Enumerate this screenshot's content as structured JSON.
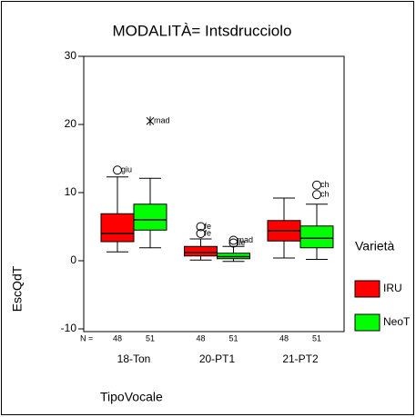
{
  "chart_data": {
    "type": "box",
    "title": "MODALITÀ= Intsdrucciolo",
    "x_label": "TipoVocale",
    "y_label": "EscQdT",
    "legend_title": "Varietà",
    "n_label": "N =",
    "categories": [
      "18-Ton",
      "20-PT1",
      "21-PT2"
    ],
    "ylim": [
      -10,
      30
    ],
    "yticks": [
      -10,
      0,
      10,
      20,
      30
    ],
    "series": [
      {
        "name": "IRU",
        "color": "#ff0000",
        "boxes": [
          {
            "min": 1.3,
            "q1": 2.8,
            "median": 4.0,
            "q3": 6.9,
            "max": 12.3,
            "n": 48,
            "outliers": [
              {
                "value": 13.3,
                "label": "giu",
                "marker": "circle"
              }
            ]
          },
          {
            "min": 0.1,
            "q1": 0.7,
            "median": 1.2,
            "q3": 2.1,
            "max": 3.2,
            "n": 48,
            "outliers": [
              {
                "value": 5.0,
                "label": "fe",
                "marker": "circle"
              },
              {
                "value": 4.0,
                "label": "fe",
                "marker": "circle"
              }
            ]
          },
          {
            "min": 0.4,
            "q1": 2.9,
            "median": 4.4,
            "q3": 5.9,
            "max": 9.2,
            "n": 48,
            "outliers": []
          }
        ]
      },
      {
        "name": "NeoT",
        "color": "#00ff00",
        "boxes": [
          {
            "min": 1.9,
            "q1": 4.5,
            "median": 6.0,
            "q3": 8.3,
            "max": 12.1,
            "n": 51,
            "outliers": [
              {
                "value": 20.5,
                "label": "mad",
                "marker": "star"
              }
            ]
          },
          {
            "min": -0.1,
            "q1": 0.3,
            "median": 0.6,
            "q3": 1.1,
            "max": 2.1,
            "n": 51,
            "outliers": [
              {
                "value": 3.0,
                "label": "mad",
                "marker": "circle"
              },
              {
                "value": 2.6,
                "label": "ile",
                "marker": "circle"
              }
            ]
          },
          {
            "min": 0.2,
            "q1": 1.9,
            "median": 3.3,
            "q3": 5.1,
            "max": 8.3,
            "n": 51,
            "outliers": [
              {
                "value": 11.1,
                "label": "ch",
                "marker": "circle"
              },
              {
                "value": 9.7,
                "label": "ch",
                "marker": "circle"
              }
            ]
          }
        ]
      }
    ]
  }
}
